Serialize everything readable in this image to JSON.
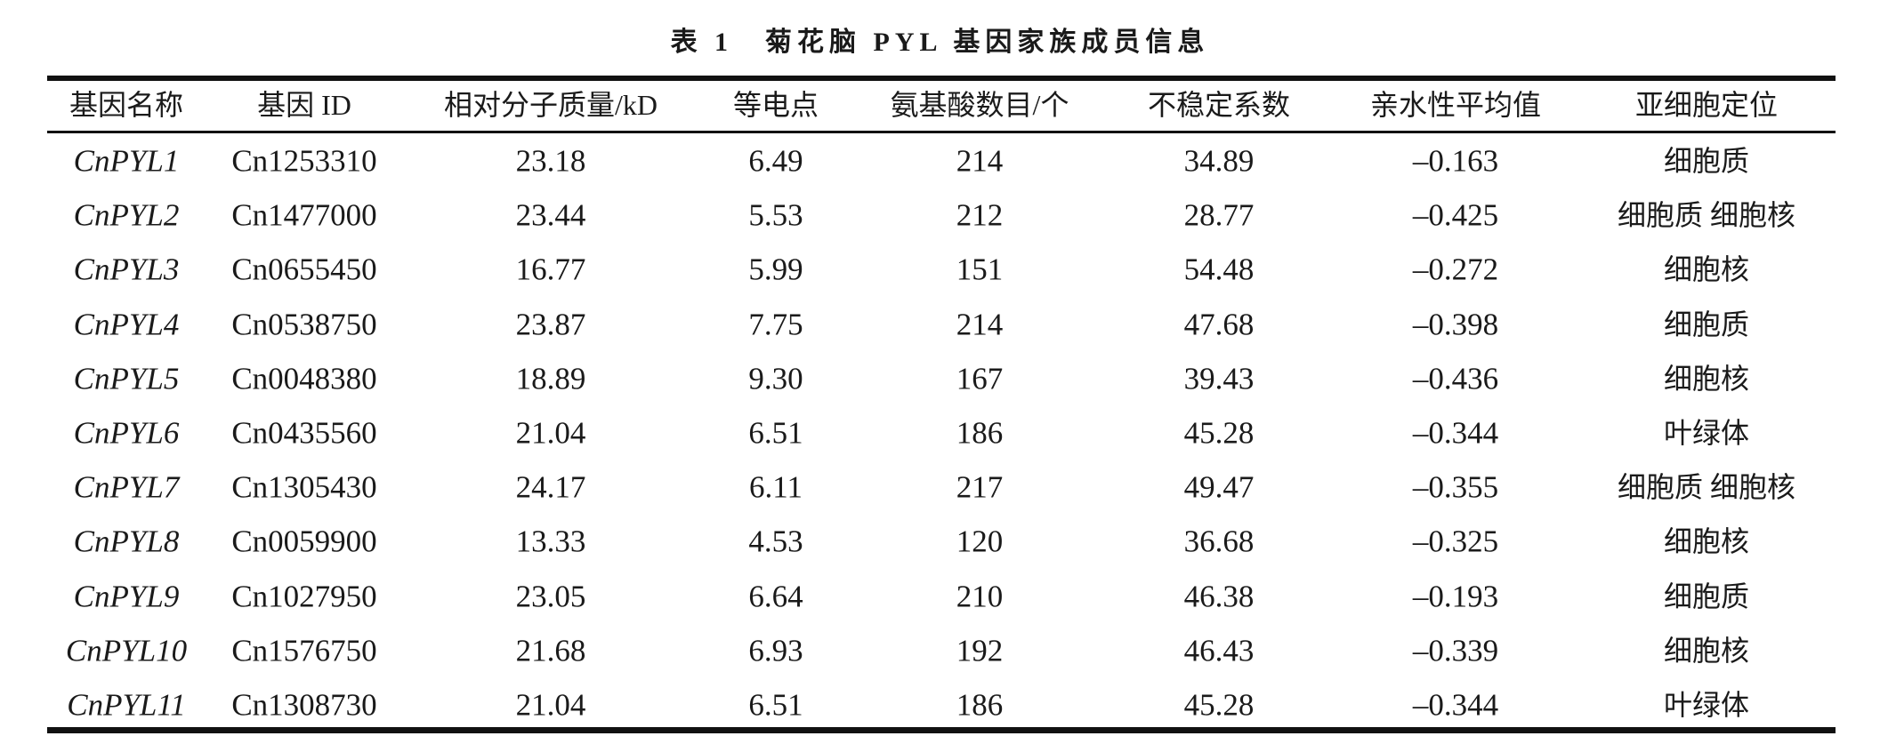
{
  "title": "表 1　菊花脑 PYL 基因家族成员信息",
  "table": {
    "headers": [
      "基因名称",
      "基因 ID",
      "相对分子质量/kD",
      "等电点",
      "氨基酸数目/个",
      "不稳定系数",
      "亲水性平均值",
      "亚细胞定位"
    ],
    "rows": [
      [
        "CnPYL1",
        "Cn1253310",
        "23.18",
        "6.49",
        "214",
        "34.89",
        "–0.163",
        "细胞质"
      ],
      [
        "CnPYL2",
        "Cn1477000",
        "23.44",
        "5.53",
        "212",
        "28.77",
        "–0.425",
        "细胞质 细胞核"
      ],
      [
        "CnPYL3",
        "Cn0655450",
        "16.77",
        "5.99",
        "151",
        "54.48",
        "–0.272",
        "细胞核"
      ],
      [
        "CnPYL4",
        "Cn0538750",
        "23.87",
        "7.75",
        "214",
        "47.68",
        "–0.398",
        "细胞质"
      ],
      [
        "CnPYL5",
        "Cn0048380",
        "18.89",
        "9.30",
        "167",
        "39.43",
        "–0.436",
        "细胞核"
      ],
      [
        "CnPYL6",
        "Cn0435560",
        "21.04",
        "6.51",
        "186",
        "45.28",
        "–0.344",
        "叶绿体"
      ],
      [
        "CnPYL7",
        "Cn1305430",
        "24.17",
        "6.11",
        "217",
        "49.47",
        "–0.355",
        "细胞质 细胞核"
      ],
      [
        "CnPYL8",
        "Cn0059900",
        "13.33",
        "4.53",
        "120",
        "36.68",
        "–0.325",
        "细胞核"
      ],
      [
        "CnPYL9",
        "Cn1027950",
        "23.05",
        "6.64",
        "210",
        "46.38",
        "–0.193",
        "细胞质"
      ],
      [
        "CnPYL10",
        "Cn1576750",
        "21.68",
        "6.93",
        "192",
        "46.43",
        "–0.339",
        "细胞核"
      ],
      [
        "CnPYL11",
        "Cn1308730",
        "21.04",
        "6.51",
        "186",
        "45.28",
        "–0.344",
        "叶绿体"
      ]
    ]
  }
}
